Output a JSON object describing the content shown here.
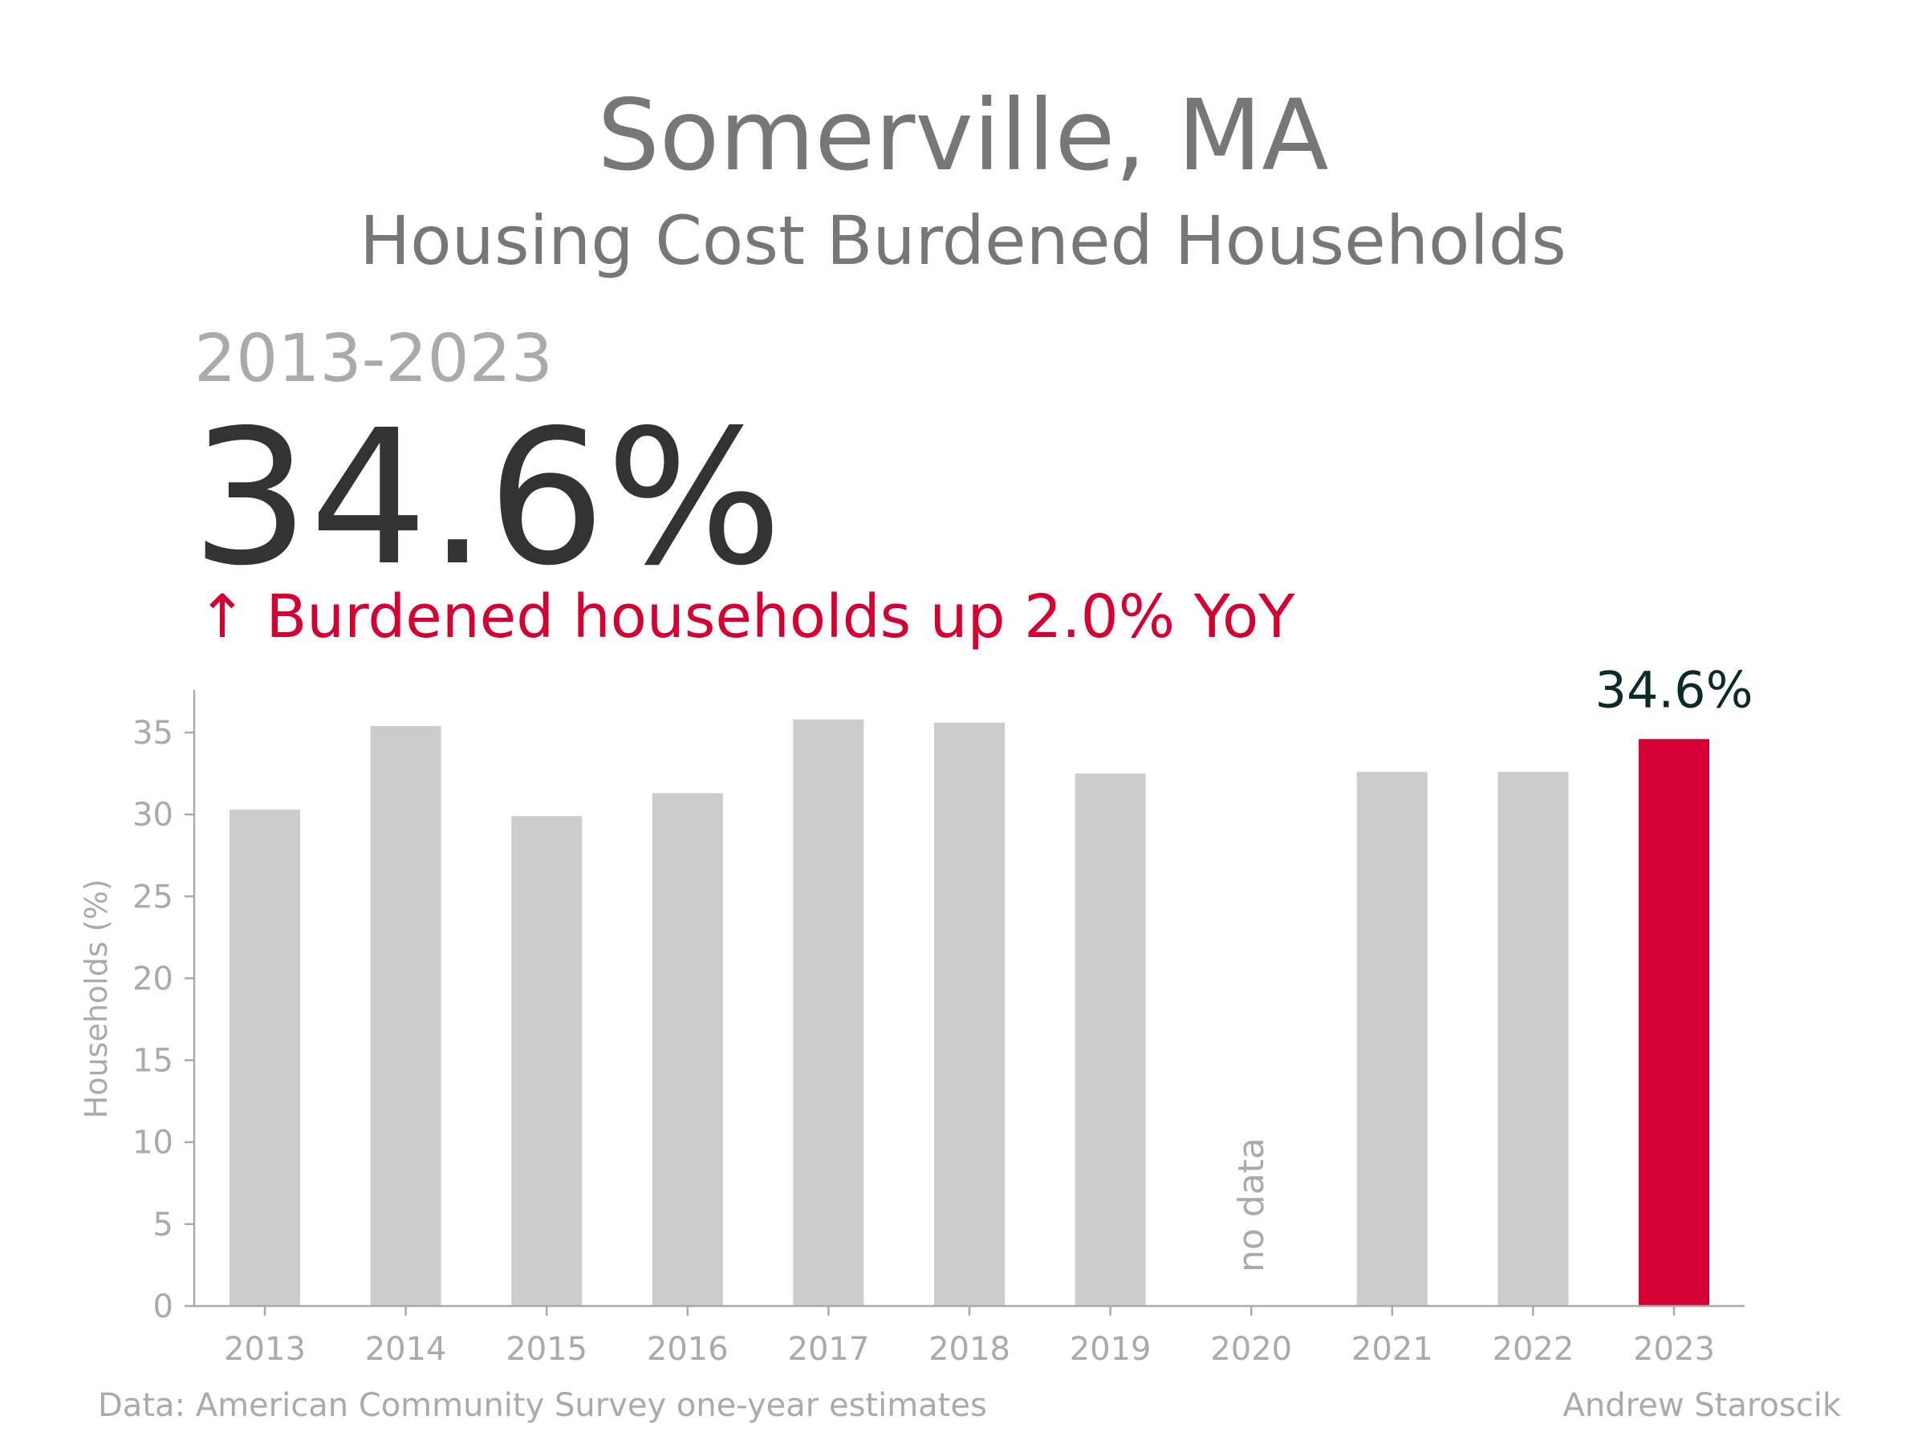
{
  "header": {
    "title": "Somerville, MA",
    "subtitle": "Housing Cost Burdened Households",
    "period": "2013-2023",
    "big_value": "34.6%",
    "yoy": "↑ Burdened households up 2.0% YoY"
  },
  "footer": {
    "source": "Data: American Community Survey one-year estimates",
    "credit": "Andrew Staroscik"
  },
  "colors": {
    "bar": "#cccccc",
    "highlight": "#d50032",
    "axis": "#aaaaaa",
    "label_dark": "#0b2a2a"
  },
  "chart_data": {
    "type": "bar",
    "categories": [
      "2013",
      "2014",
      "2015",
      "2016",
      "2017",
      "2018",
      "2019",
      "2020",
      "2021",
      "2022",
      "2023"
    ],
    "values": [
      30.3,
      35.4,
      29.9,
      31.3,
      35.8,
      35.6,
      32.5,
      null,
      32.6,
      32.6,
      34.6
    ],
    "highlight_index": 10,
    "highlight_label": "34.6%",
    "missing_label": "no data",
    "ylabel": "Households (%)",
    "yticks": [
      0,
      5,
      10,
      15,
      20,
      25,
      30,
      35
    ],
    "ylim": [
      0,
      37.6
    ],
    "grid": false
  }
}
